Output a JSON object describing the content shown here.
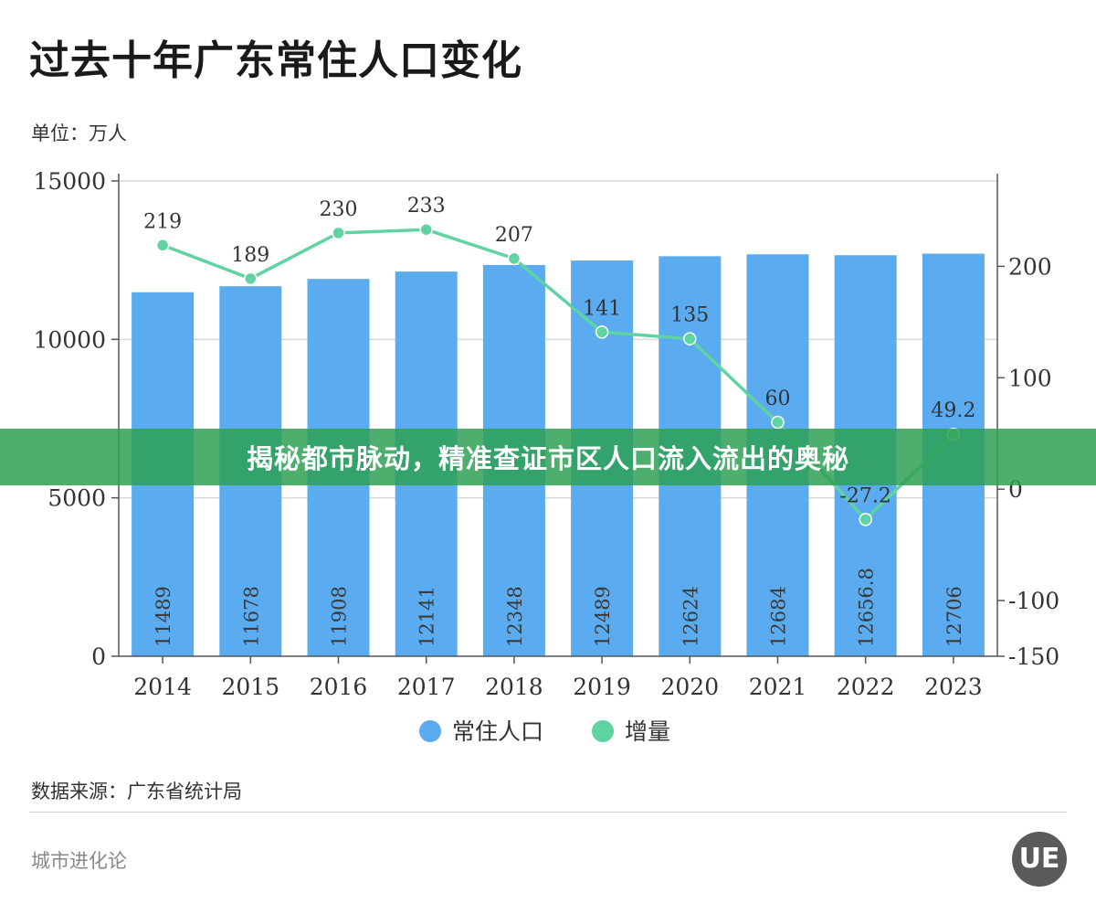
{
  "header": {
    "title": "过去十年广东常住人口变化",
    "unit": "单位：万人"
  },
  "banner": {
    "text": "揭秘都市脉动，精准查证市区人口流入流出的奥秘"
  },
  "footer": {
    "source": "数据来源：广东省统计局",
    "brand": "城市进化论",
    "logo_text": "UE"
  },
  "colors": {
    "bar": "#5aabf0",
    "line": "#5fd3a2",
    "grid": "#d9d9d9",
    "axis": "#555555",
    "banner": "#2ea054"
  },
  "chart_data": {
    "type": "bar",
    "title": "过去十年广东常住人口变化",
    "categories": [
      "2014",
      "2015",
      "2016",
      "2017",
      "2018",
      "2019",
      "2020",
      "2021",
      "2022",
      "2023"
    ],
    "series": [
      {
        "name": "常住人口",
        "type": "bar",
        "axis": "left",
        "values": [
          11489,
          11678,
          11908,
          12141,
          12348,
          12489,
          12624,
          12684,
          12656.8,
          12706
        ],
        "labels": [
          "11489",
          "11678",
          "11908",
          "12141",
          "12348",
          "12489",
          "12624",
          "12684",
          "12656.8",
          "12706"
        ]
      },
      {
        "name": "增量",
        "type": "line",
        "axis": "right",
        "values": [
          219,
          189,
          230,
          233,
          207,
          141,
          135,
          60,
          -27.2,
          49.2
        ],
        "labels": [
          "219",
          "189",
          "230",
          "233",
          "207",
          "141",
          "135",
          "60",
          "-27.2",
          "49.2"
        ]
      }
    ],
    "left_axis": {
      "min": 0,
      "max": 15000,
      "ticks": [
        0,
        5000,
        10000,
        15000
      ],
      "tick_labels": [
        "0",
        "5000",
        "10000",
        "15000"
      ]
    },
    "right_axis": {
      "min": -150,
      "max": 275,
      "ticks": [
        -150,
        -100,
        0,
        100,
        200
      ],
      "tick_labels": [
        "-150",
        "-100",
        "0",
        "100",
        "200"
      ]
    },
    "legend": [
      "常住人口",
      "增量"
    ],
    "legend_position": "bottom-center",
    "grid": true
  }
}
